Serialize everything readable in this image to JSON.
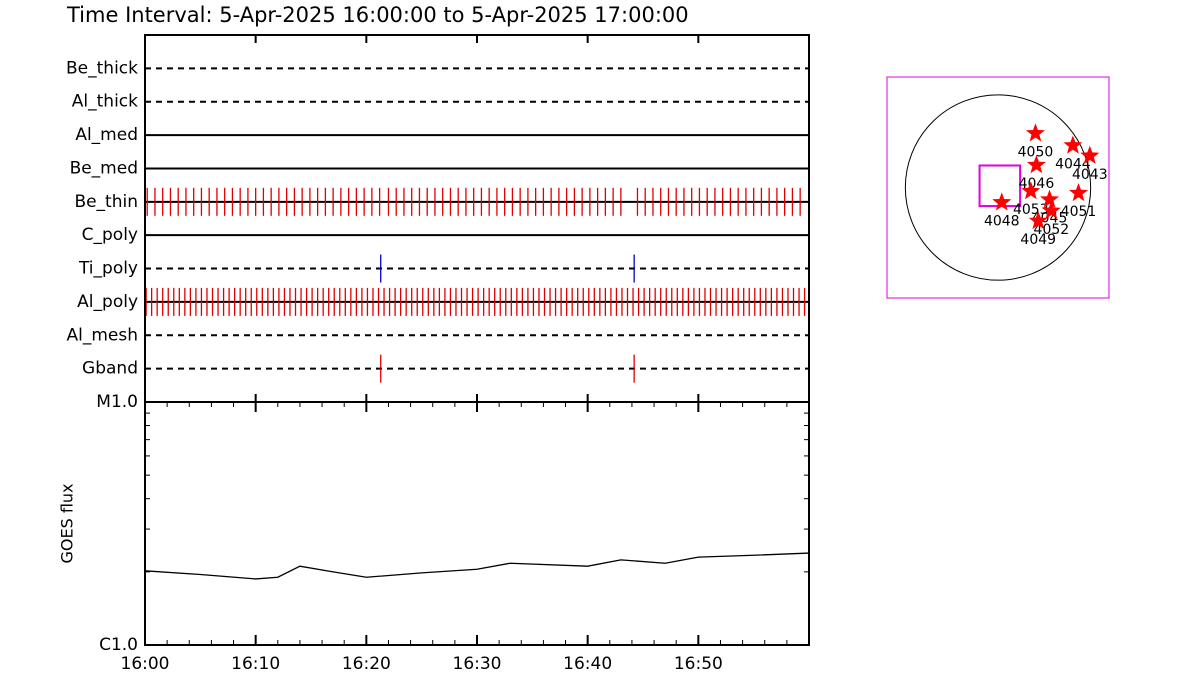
{
  "chart_data": [
    {
      "type": "timeline",
      "title": "Time Interval:  5-Apr-2025 16:00:00 to  5-Apr-2025 17:00:00",
      "xlim": [
        0,
        60
      ],
      "xticks": [
        0,
        10,
        20,
        30,
        40,
        50
      ],
      "filters": [
        {
          "name": "Be_thick",
          "style": "dashed",
          "color": "#000000",
          "times": []
        },
        {
          "name": "Al_thick",
          "style": "dashed",
          "color": "#000000",
          "times": []
        },
        {
          "name": "Al_med",
          "style": "solid",
          "color": "#000000",
          "times": []
        },
        {
          "name": "Be_med",
          "style": "solid",
          "color": "#000000",
          "times": []
        },
        {
          "name": "Be_thin",
          "style": "solid",
          "color": "#e00000",
          "times": [
            0.2,
            0.9,
            1.6,
            2.3,
            3.0,
            3.7,
            4.4,
            5.1,
            5.8,
            6.5,
            7.2,
            7.9,
            8.6,
            9.3,
            10.0,
            10.7,
            11.4,
            12.1,
            12.8,
            13.5,
            14.2,
            14.9,
            15.6,
            16.3,
            17.0,
            17.7,
            18.4,
            19.1,
            19.8,
            20.5,
            21.2,
            22.0,
            22.7,
            23.4,
            24.1,
            24.8,
            25.5,
            26.2,
            26.9,
            27.6,
            28.3,
            29.0,
            29.7,
            30.4,
            31.1,
            31.8,
            32.5,
            33.2,
            33.9,
            34.6,
            35.3,
            36.0,
            36.7,
            37.4,
            38.1,
            38.8,
            39.5,
            40.2,
            40.9,
            41.6,
            42.3,
            43.0,
            44.5,
            45.2,
            45.9,
            46.6,
            47.3,
            48.0,
            48.7,
            49.4,
            50.1,
            50.8,
            51.5,
            52.2,
            52.9,
            53.6,
            54.3,
            55.0,
            55.7,
            56.4,
            57.1,
            57.8,
            58.5,
            59.2
          ]
        },
        {
          "name": "C_poly",
          "style": "solid",
          "color": "#000000",
          "times": []
        },
        {
          "name": "Ti_poly",
          "style": "dashed",
          "color": "#0000cc",
          "times": [
            21.3,
            44.2
          ]
        },
        {
          "name": "Al_poly",
          "style": "solid",
          "color": "#e00000",
          "times": [
            0.1,
            0.6,
            1.1,
            1.6,
            2.1,
            2.6,
            3.1,
            3.6,
            4.1,
            4.6,
            5.1,
            5.6,
            6.1,
            6.6,
            7.1,
            7.6,
            8.1,
            8.6,
            9.1,
            9.6,
            10.1,
            10.6,
            11.1,
            11.6,
            12.1,
            12.6,
            13.1,
            13.6,
            14.1,
            14.6,
            15.1,
            15.6,
            16.1,
            16.6,
            17.1,
            17.6,
            18.1,
            18.6,
            19.1,
            19.6,
            20.1,
            20.6,
            21.1,
            21.6,
            22.1,
            22.6,
            23.1,
            23.6,
            24.1,
            24.6,
            25.1,
            25.6,
            26.1,
            26.6,
            27.1,
            27.6,
            28.1,
            28.6,
            29.1,
            29.6,
            30.1,
            30.6,
            31.1,
            31.6,
            32.1,
            32.6,
            33.1,
            33.6,
            34.1,
            34.6,
            35.1,
            35.6,
            36.1,
            36.6,
            37.1,
            37.6,
            38.1,
            38.6,
            39.1,
            39.6,
            40.1,
            40.6,
            41.1,
            41.6,
            42.1,
            42.6,
            43.1,
            43.6,
            44.1,
            44.6,
            45.1,
            45.6,
            46.1,
            46.6,
            47.1,
            47.6,
            48.1,
            48.6,
            49.1,
            49.6,
            50.1,
            50.6,
            51.1,
            51.6,
            52.1,
            52.6,
            53.1,
            53.6,
            54.1,
            54.6,
            55.1,
            55.6,
            56.1,
            56.6,
            57.1,
            57.6,
            58.1,
            58.6,
            59.1,
            59.6
          ]
        },
        {
          "name": "Al_mesh",
          "style": "dashed",
          "color": "#000000",
          "times": []
        },
        {
          "name": "Gband",
          "style": "dashed",
          "color": "#e00000",
          "times": [
            21.3,
            44.2
          ]
        }
      ]
    },
    {
      "type": "line",
      "ylabel": "GOES flux",
      "log": true,
      "color": "#000000",
      "x": [
        0,
        5,
        10,
        12,
        14,
        17,
        20,
        25,
        30,
        33,
        40,
        43,
        47,
        50,
        55,
        60
      ],
      "values": [
        2.02e-06,
        1.95e-06,
        1.87e-06,
        1.9e-06,
        2.11e-06,
        2e-06,
        1.9e-06,
        1.98e-06,
        2.05e-06,
        2.17e-06,
        2.11e-06,
        2.24e-06,
        2.17e-06,
        2.3e-06,
        2.34e-06,
        2.39e-06
      ],
      "xlim": [
        0,
        60
      ],
      "xticks": [
        {
          "value": 0,
          "label": "16:00"
        },
        {
          "value": 10,
          "label": "16:10"
        },
        {
          "value": 20,
          "label": "16:20"
        },
        {
          "value": 30,
          "label": "16:30"
        },
        {
          "value": 40,
          "label": "16:40"
        },
        {
          "value": 50,
          "label": "16:50"
        }
      ],
      "xminorticks": [
        2,
        4,
        6,
        8,
        12,
        14,
        16,
        18,
        22,
        24,
        26,
        28,
        32,
        34,
        36,
        38,
        42,
        44,
        46,
        48,
        52,
        54,
        56,
        58
      ],
      "ylim": [
        1e-06,
        1e-05
      ],
      "yticks": [
        {
          "value": 1e-06,
          "label": "C1.0"
        },
        {
          "value": 1e-05,
          "label": "M1.0"
        }
      ],
      "yminorticks": [
        2e-06,
        3e-06,
        4e-06,
        5e-06,
        6e-06,
        7e-06,
        8e-06,
        9e-06
      ]
    },
    {
      "type": "map",
      "xlim": [
        -1150,
        1150
      ],
      "ylim": [
        -1150,
        1150
      ],
      "solar_radius": 960,
      "frame_color": "#e000e0",
      "marker_color": "#ff0000",
      "fov": {
        "x": 19,
        "y": 19,
        "width": 420,
        "height": 420
      },
      "regions": [
        {
          "label": "4050",
          "x": 388,
          "y": 563
        },
        {
          "label": "4044",
          "x": 776,
          "y": 437
        },
        {
          "label": "4043",
          "x": 951,
          "y": 330
        },
        {
          "label": "4046",
          "x": 398,
          "y": 233
        },
        {
          "label": "4053",
          "x": 340,
          "y": -39
        },
        {
          "label": "4045",
          "x": 534,
          "y": -126
        },
        {
          "label": "4051",
          "x": 834,
          "y": -58
        },
        {
          "label": "4048",
          "x": 39,
          "y": -155
        },
        {
          "label": "4052",
          "x": 553,
          "y": -243
        },
        {
          "label": "4049",
          "x": 417,
          "y": -349
        }
      ]
    }
  ]
}
